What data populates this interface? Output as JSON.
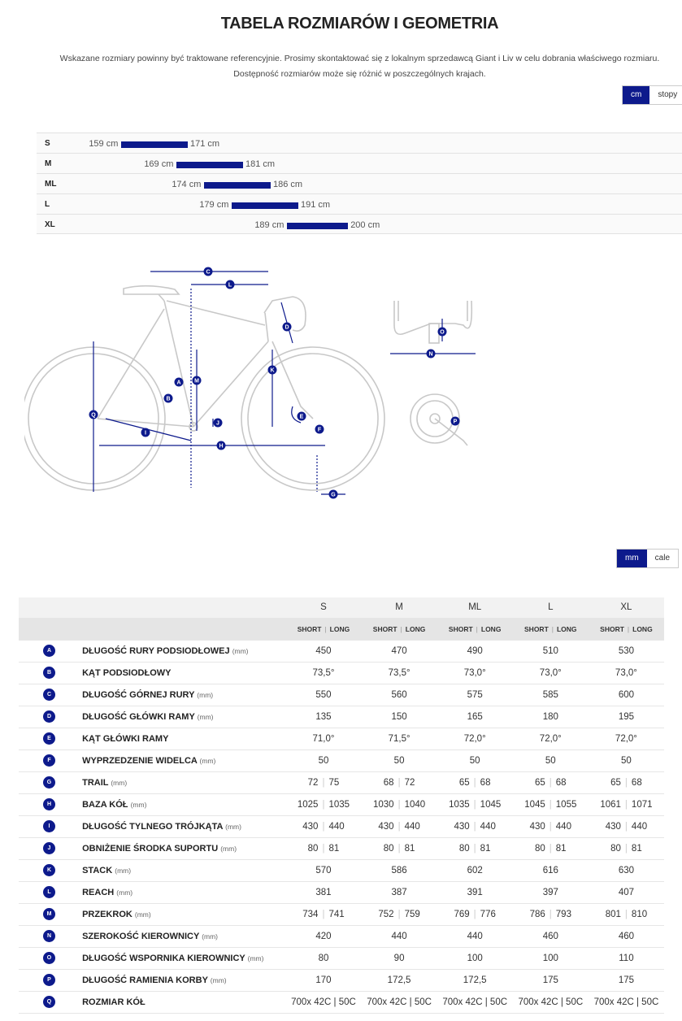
{
  "title": "TABELA ROZMIARÓW I GEOMETRIA",
  "notice": {
    "line1": "Wskazane rozmiary powinny być traktowane referencyjnie. Prosimy skontaktować się z lokalnym sprzedawcą Giant i Liv w celu dobrania właściwego rozmiaru.",
    "line2": "Dostępność rozmiarów może się różnić w poszczególnych krajach."
  },
  "height_units": {
    "cm": "cm",
    "ft": "stopy",
    "selected": "cm"
  },
  "size_chart": [
    {
      "size": "S",
      "min": 159,
      "max": 171,
      "min_label": "159 cm",
      "max_label": "171 cm"
    },
    {
      "size": "M",
      "min": 169,
      "max": 181,
      "min_label": "169 cm",
      "max_label": "181 cm"
    },
    {
      "size": "ML",
      "min": 174,
      "max": 186,
      "min_label": "174 cm",
      "max_label": "186 cm"
    },
    {
      "size": "L",
      "min": 179,
      "max": 191,
      "min_label": "179 cm",
      "max_label": "191 cm"
    },
    {
      "size": "XL",
      "min": 189,
      "max": 200,
      "min_label": "189 cm",
      "max_label": "200 cm"
    }
  ],
  "diagram_letters": [
    "A",
    "B",
    "C",
    "D",
    "E",
    "F",
    "G",
    "H",
    "I",
    "J",
    "K",
    "L",
    "M",
    "N",
    "O",
    "P",
    "Q"
  ],
  "geo_units": {
    "mm": "mm",
    "in": "cale",
    "selected": "mm"
  },
  "geometry": {
    "sizes": [
      "S",
      "M",
      "ML",
      "L",
      "XL"
    ],
    "short_label": "SHORT",
    "long_label": "LONG",
    "rows": [
      {
        "letter": "A",
        "name": "Długość rury podsiodłowej",
        "unit": "(mm)",
        "values": [
          "450",
          "470",
          "490",
          "510",
          "530"
        ]
      },
      {
        "letter": "B",
        "name": "Kąt podsiodłowy",
        "unit": "",
        "values": [
          "73,5°",
          "73,5°",
          "73,0°",
          "73,0°",
          "73,0°"
        ]
      },
      {
        "letter": "C",
        "name": "Długość górnej rury",
        "unit": "(mm)",
        "values": [
          "550",
          "560",
          "575",
          "585",
          "600"
        ]
      },
      {
        "letter": "D",
        "name": "Długość główki ramy",
        "unit": "(mm)",
        "values": [
          "135",
          "150",
          "165",
          "180",
          "195"
        ]
      },
      {
        "letter": "E",
        "name": "Kąt główki ramy",
        "unit": "",
        "values": [
          "71,0°",
          "71,5°",
          "72,0°",
          "72,0°",
          "72,0°"
        ]
      },
      {
        "letter": "F",
        "name": "Wyprzedzenie widelca",
        "unit": "(mm)",
        "values": [
          "50",
          "50",
          "50",
          "50",
          "50"
        ]
      },
      {
        "letter": "G",
        "name": "Trail",
        "unit": "(mm)",
        "pairs": [
          [
            "72",
            "75"
          ],
          [
            "68",
            "72"
          ],
          [
            "65",
            "68"
          ],
          [
            "65",
            "68"
          ],
          [
            "65",
            "68"
          ]
        ]
      },
      {
        "letter": "H",
        "name": "Baza kół",
        "unit": "(mm)",
        "pairs": [
          [
            "1025",
            "1035"
          ],
          [
            "1030",
            "1040"
          ],
          [
            "1035",
            "1045"
          ],
          [
            "1045",
            "1055"
          ],
          [
            "1061",
            "1071"
          ]
        ]
      },
      {
        "letter": "I",
        "name": "Długość tylnego trójkąta",
        "unit": "(mm)",
        "pairs": [
          [
            "430",
            "440"
          ],
          [
            "430",
            "440"
          ],
          [
            "430",
            "440"
          ],
          [
            "430",
            "440"
          ],
          [
            "430",
            "440"
          ]
        ]
      },
      {
        "letter": "J",
        "name": "Obniżenie środka suportu",
        "unit": "(mm)",
        "pairs": [
          [
            "80",
            "81"
          ],
          [
            "80",
            "81"
          ],
          [
            "80",
            "81"
          ],
          [
            "80",
            "81"
          ],
          [
            "80",
            "81"
          ]
        ]
      },
      {
        "letter": "K",
        "name": "Stack",
        "unit": "(mm)",
        "values": [
          "570",
          "586",
          "602",
          "616",
          "630"
        ]
      },
      {
        "letter": "L",
        "name": "Reach",
        "unit": "(mm)",
        "values": [
          "381",
          "387",
          "391",
          "397",
          "407"
        ]
      },
      {
        "letter": "M",
        "name": "Przekrok",
        "unit": "(mm)",
        "pairs": [
          [
            "734",
            "741"
          ],
          [
            "752",
            "759"
          ],
          [
            "769",
            "776"
          ],
          [
            "786",
            "793"
          ],
          [
            "801",
            "810"
          ]
        ]
      },
      {
        "letter": "N",
        "name": "Szerokość kierownicy",
        "unit": "(mm)",
        "values": [
          "420",
          "440",
          "440",
          "460",
          "460"
        ]
      },
      {
        "letter": "O",
        "name": "Długość wspornika kierownicy",
        "unit": "(mm)",
        "values": [
          "80",
          "90",
          "100",
          "100",
          "110"
        ]
      },
      {
        "letter": "P",
        "name": "Długość ramienia korby",
        "unit": "(mm)",
        "values": [
          "170",
          "172,5",
          "172,5",
          "175",
          "175"
        ]
      },
      {
        "letter": "Q",
        "name": "Rozmiar kół",
        "unit": "",
        "values": [
          "700x 42C | 50C",
          "700x 42C | 50C",
          "700x 42C | 50C",
          "700x 42C | 50C",
          "700x 42C | 50C"
        ]
      }
    ]
  },
  "colors": {
    "accent": "#0d1a8c"
  }
}
